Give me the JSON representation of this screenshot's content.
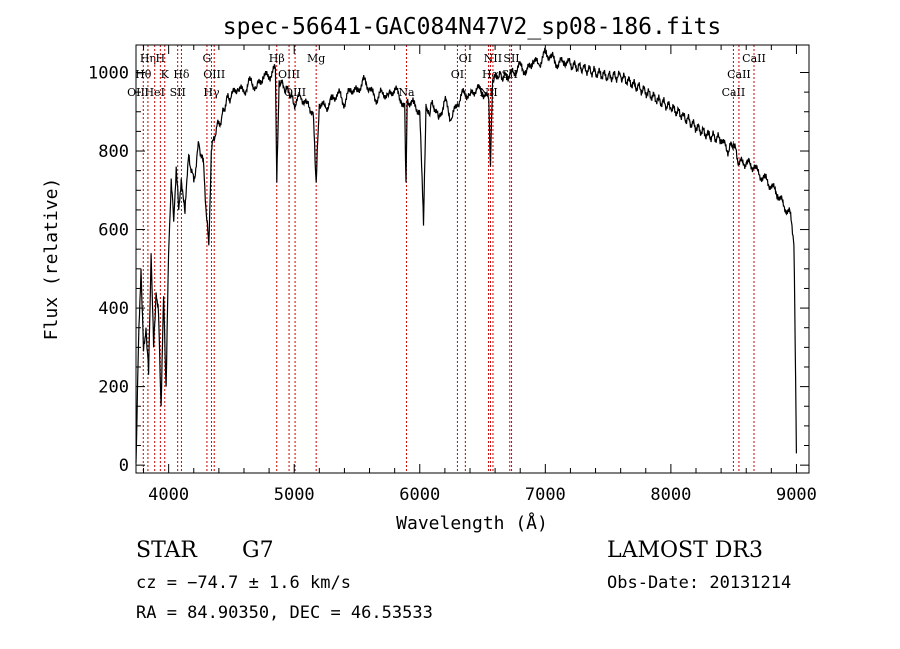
{
  "chart_data": {
    "type": "line",
    "title": "spec-56641-GAC084N47V2_sp08-186.fits",
    "xlabel": "Wavelength (Å)",
    "ylabel": "Flux (relative)",
    "xlim": [
      3740,
      9100
    ],
    "ylim": [
      -20,
      1070
    ],
    "x_ticks": [
      4000,
      5000,
      6000,
      7000,
      8000,
      9000
    ],
    "y_ticks": [
      0,
      200,
      400,
      600,
      800,
      1000
    ],
    "x_tick_labels": [
      "4000",
      "5000",
      "6000",
      "7000",
      "8000",
      "9000"
    ],
    "y_tick_labels": [
      "0",
      "200",
      "400",
      "600",
      "800",
      "1000"
    ],
    "series": [
      {
        "name": "flux",
        "x": [
          3740,
          3760,
          3780,
          3800,
          3820,
          3840,
          3860,
          3880,
          3900,
          3920,
          3940,
          3960,
          3980,
          4000,
          4020,
          4040,
          4060,
          4080,
          4100,
          4130,
          4160,
          4200,
          4240,
          4280,
          4300,
          4320,
          4340,
          4380,
          4420,
          4460,
          4500,
          4550,
          4600,
          4650,
          4700,
          4750,
          4800,
          4850,
          4861,
          4880,
          4920,
          4960,
          5000,
          5050,
          5100,
          5150,
          5175,
          5200,
          5250,
          5300,
          5350,
          5400,
          5450,
          5500,
          5550,
          5600,
          5650,
          5700,
          5750,
          5800,
          5850,
          5880,
          5890,
          5900,
          5950,
          6000,
          6030,
          6050,
          6080,
          6100,
          6150,
          6200,
          6250,
          6300,
          6350,
          6400,
          6450,
          6500,
          6550,
          6563,
          6580,
          6620,
          6700,
          6750,
          6800,
          6850,
          6900,
          6950,
          7000,
          7050,
          7100,
          7150,
          7200,
          7300,
          7400,
          7500,
          7600,
          7700,
          7800,
          7900,
          8000,
          8100,
          8200,
          8300,
          8400,
          8450,
          8498,
          8542,
          8600,
          8662,
          8700,
          8750,
          8800,
          8850,
          8900,
          8950,
          8980,
          8990,
          9000
        ],
        "values": [
          5,
          310,
          500,
          290,
          350,
          230,
          540,
          300,
          440,
          380,
          150,
          430,
          200,
          540,
          730,
          620,
          760,
          650,
          730,
          640,
          790,
          720,
          820,
          760,
          640,
          560,
          800,
          860,
          880,
          930,
          940,
          960,
          950,
          980,
          960,
          990,
          990,
          1010,
          720,
          980,
          960,
          950,
          920,
          940,
          920,
          900,
          720,
          920,
          910,
          930,
          950,
          920,
          960,
          950,
          980,
          960,
          930,
          950,
          940,
          960,
          930,
          920,
          720,
          930,
          920,
          900,
          610,
          920,
          890,
          930,
          880,
          930,
          880,
          920,
          950,
          940,
          960,
          950,
          930,
          760,
          980,
          990,
          990,
          1000,
          1020,
          1000,
          1030,
          1020,
          1050,
          1040,
          1020,
          1030,
          1020,
          1010,
          1000,
          990,
          990,
          970,
          950,
          930,
          910,
          890,
          860,
          840,
          830,
          800,
          820,
          770,
          770,
          760,
          740,
          730,
          710,
          690,
          660,
          640,
          560,
          300,
          30
        ]
      }
    ],
    "line_markers": [
      {
        "label": "OII",
        "x": 3727,
        "row": 3
      },
      {
        "label": "Hθ",
        "x": 3798,
        "row": 2
      },
      {
        "label": "Hη",
        "x": 3835,
        "row": 1
      },
      {
        "label": "HeI",
        "x": 3889,
        "row": 3
      },
      {
        "label": "H",
        "x": 3934,
        "row": 1
      },
      {
        "label": "K",
        "x": 3969,
        "row": 2
      },
      {
        "label": "SII",
        "x": 4072,
        "row": 3
      },
      {
        "label": "Hδ",
        "x": 4102,
        "row": 2
      },
      {
        "label": "G",
        "x": 4305,
        "row": 1
      },
      {
        "label": "Hγ",
        "x": 4341,
        "row": 3
      },
      {
        "label": "OIII",
        "x": 4363,
        "row": 2
      },
      {
        "label": "Hβ",
        "x": 4861,
        "row": 1
      },
      {
        "label": "OIII",
        "x": 4959,
        "row": 2
      },
      {
        "label": "OIII",
        "x": 5007,
        "row": 3
      },
      {
        "label": "Mg",
        "x": 5175,
        "row": 1
      },
      {
        "label": "Na",
        "x": 5894,
        "row": 3
      },
      {
        "label": "OI",
        "x": 6300,
        "row": 2
      },
      {
        "label": "OI",
        "x": 6363,
        "row": 1
      },
      {
        "label": "NII",
        "x": 6548,
        "row": 3
      },
      {
        "label": "Hα",
        "x": 6563,
        "row": 2
      },
      {
        "label": "NII",
        "x": 6583,
        "row": 1
      },
      {
        "label": "SII",
        "x": 6717,
        "row": 2
      },
      {
        "label": "SII",
        "x": 6731,
        "row": 1
      },
      {
        "label": "CaII",
        "x": 8498,
        "row": 3
      },
      {
        "label": "CaII",
        "x": 8542,
        "row": 2
      },
      {
        "label": "CaII",
        "x": 8662,
        "row": 1
      }
    ]
  },
  "info": {
    "object_class": "STAR",
    "subclass": "G7",
    "survey": "LAMOST DR3",
    "cz": "cz = −74.7 ± 1.6 km/s",
    "obs_date": "Obs-Date: 20131214",
    "coords": "RA =  84.90350, DEC =  46.53533"
  },
  "colors": {
    "spectrum": "#000000",
    "marker_lines": "#cc0000",
    "axes": "#000000",
    "background": "#ffffff"
  }
}
